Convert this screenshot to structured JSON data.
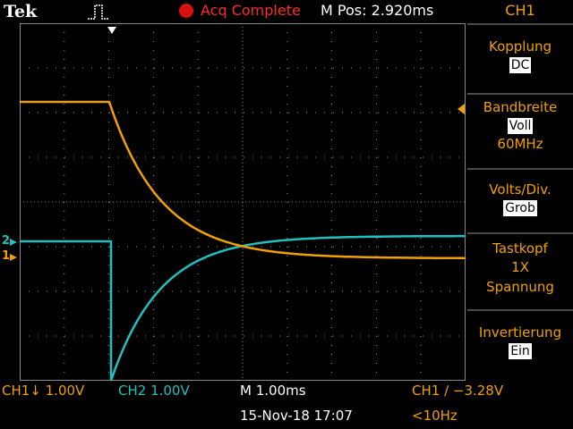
{
  "header": {
    "brand": "Tek",
    "acq_status": "Acq Complete",
    "m_pos": "M Pos: 2.920ms"
  },
  "menu": {
    "channel": "CH1",
    "coupling_label": "Kopplung",
    "coupling_value": "DC",
    "bandwidth_label": "Bandbreite",
    "bandwidth_value": "Voll",
    "bandwidth_freq": "60MHz",
    "volts_div_label": "Volts/Div.",
    "volts_div_value": "Grob",
    "probe_label": "Tastkopf",
    "probe_factor": "1X",
    "probe_type": "Spannung",
    "invert_label": "Invertierung",
    "invert_value": "Ein"
  },
  "status": {
    "ch1": "CH1↓ 1.00V",
    "ch2": "CH2  1.00V",
    "timebase": "M 1.00ms",
    "trigger": "CH1 ∕ −3.28V",
    "date": "15-Nov-18 17:07",
    "trigger_freq": "<10Hz"
  },
  "markers": {
    "ch1": "1",
    "ch2": "2"
  },
  "colors": {
    "ch1": "#f0a000",
    "ch2": "#20c0c0",
    "grid": "#8a8a8a",
    "acq": "#d81010"
  }
}
